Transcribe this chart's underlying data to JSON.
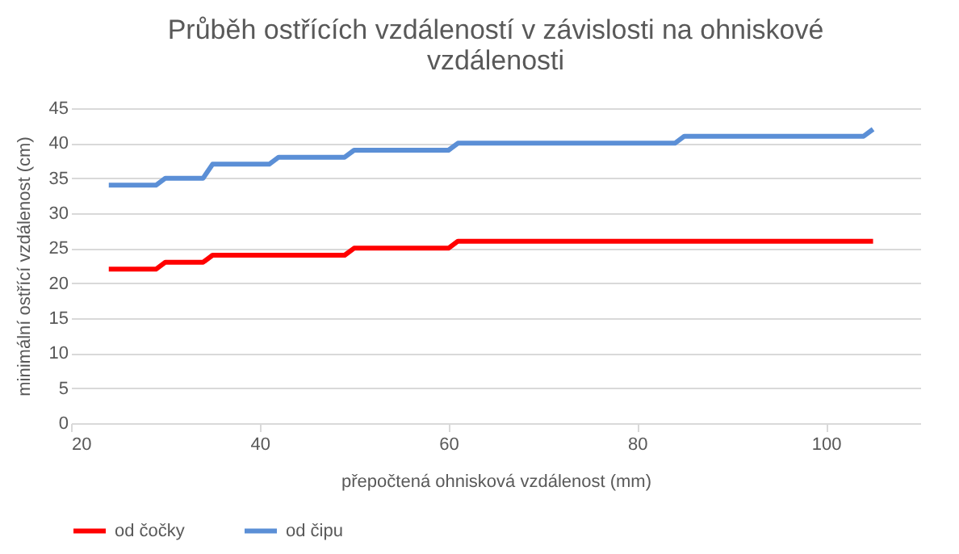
{
  "chart_data": {
    "type": "line",
    "title": "Průběh ostřících vzdáleností v závislosti na ohniskové vzdálenosti",
    "xlabel": "přepočtená ohnisková vzdálenost (mm)",
    "ylabel": "minimální ostřící vzdálenost (cm)",
    "x": [
      24,
      29,
      30,
      34,
      35,
      41,
      42,
      49,
      50,
      60,
      61,
      84,
      85,
      104,
      105
    ],
    "series": [
      {
        "name": "od čočky",
        "color": "#ff0000",
        "values": [
          22,
          22,
          23,
          23,
          24,
          24,
          24,
          24,
          25,
          25,
          26,
          26,
          26,
          26,
          26
        ]
      },
      {
        "name": "od čipu",
        "color": "#5b8fd6",
        "values": [
          34,
          34,
          35,
          35,
          37,
          37,
          38,
          38,
          39,
          39,
          40,
          40,
          41,
          41,
          42
        ]
      }
    ],
    "xlim": [
      20,
      110
    ],
    "xticks": [
      20,
      40,
      60,
      80,
      100
    ],
    "ylim": [
      0,
      45
    ],
    "yticks": [
      0,
      5,
      10,
      15,
      20,
      25,
      30,
      35,
      40,
      45
    ],
    "grid": "y",
    "legend": "bottom",
    "marker": "none",
    "line_style": "solid"
  }
}
